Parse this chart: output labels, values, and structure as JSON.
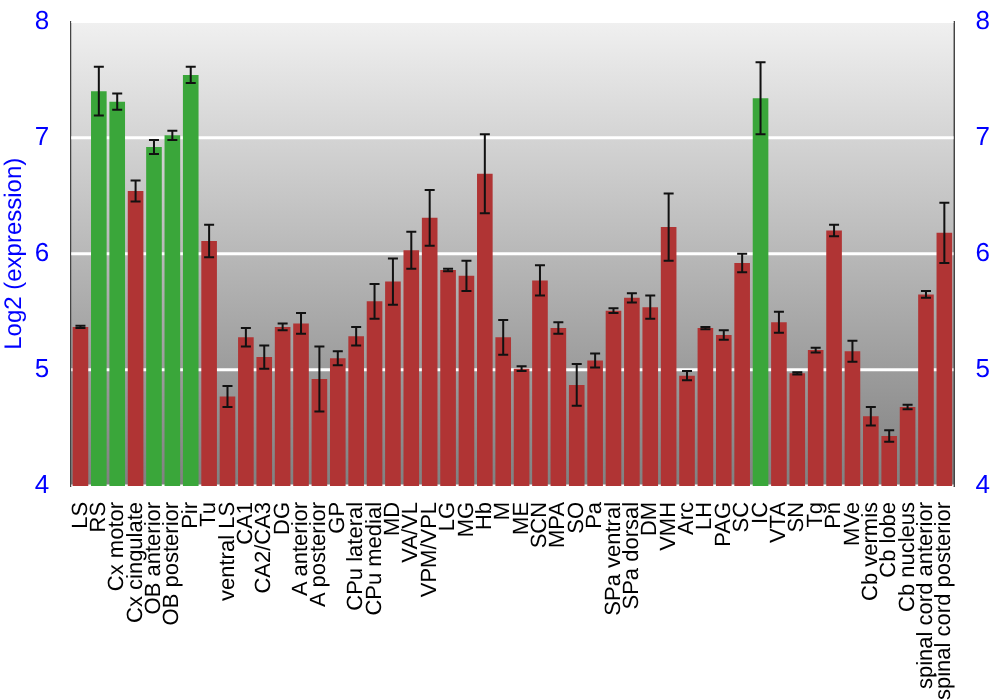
{
  "chart_data": {
    "type": "bar",
    "ylabel": "Log2 (expression)",
    "categories": [
      "LS",
      "RS",
      "Cx motor",
      "Cx cingulate",
      "OB anterior",
      "OB posterior",
      "Pir",
      "Tu",
      "ventral LS",
      "CA1",
      "CA2/CA3",
      "DG",
      "A anterior",
      "A posterior",
      "GP",
      "CPu lateral",
      "CPu medial",
      "MD",
      "VA/VL",
      "VPM/VPL",
      "LG",
      "MG",
      "Hb",
      "M",
      "ME",
      "SCN",
      "MPA",
      "SO",
      "Pa",
      "SPa ventral",
      "SPa dorsal",
      "DM",
      "VMH",
      "Arc",
      "LH",
      "PAG",
      "SC",
      "IC",
      "VTA",
      "SN",
      "Tg",
      "Pn",
      "MVe",
      "Cb vermis",
      "Cb lobe",
      "Cb nucleus",
      "spinal cord anterior",
      "spinal cord posterior"
    ],
    "values": [
      5.37,
      7.4,
      7.31,
      6.54,
      6.92,
      7.02,
      7.54,
      6.11,
      4.77,
      5.28,
      5.11,
      5.37,
      5.4,
      4.92,
      5.1,
      5.29,
      5.59,
      5.76,
      6.03,
      6.31,
      5.86,
      5.81,
      6.69,
      5.28,
      5.01,
      5.77,
      5.36,
      4.87,
      5.08,
      5.51,
      5.62,
      5.54,
      6.23,
      4.95,
      5.36,
      5.3,
      5.92,
      7.34,
      5.41,
      4.97,
      5.17,
      6.2,
      5.16,
      4.6,
      4.43,
      4.68,
      5.65,
      6.18
    ],
    "errors": [
      0.01,
      0.21,
      0.07,
      0.09,
      0.06,
      0.04,
      0.07,
      0.14,
      0.09,
      0.08,
      0.1,
      0.03,
      0.09,
      0.28,
      0.06,
      0.08,
      0.15,
      0.2,
      0.16,
      0.24,
      0.01,
      0.13,
      0.34,
      0.15,
      0.02,
      0.13,
      0.05,
      0.18,
      0.06,
      0.02,
      0.04,
      0.1,
      0.29,
      0.04,
      0.01,
      0.04,
      0.08,
      0.31,
      0.09,
      0.01,
      0.02,
      0.05,
      0.09,
      0.08,
      0.05,
      0.02,
      0.03,
      0.26
    ],
    "colors": [
      "#b03434",
      "#3aa63a",
      "#3aa63a",
      "#b03434",
      "#3aa63a",
      "#3aa63a",
      "#3aa63a",
      "#b03434",
      "#b03434",
      "#b03434",
      "#b03434",
      "#b03434",
      "#b03434",
      "#b03434",
      "#b03434",
      "#b03434",
      "#b03434",
      "#b03434",
      "#b03434",
      "#b03434",
      "#b03434",
      "#b03434",
      "#b03434",
      "#b03434",
      "#b03434",
      "#b03434",
      "#b03434",
      "#b03434",
      "#b03434",
      "#b03434",
      "#b03434",
      "#b03434",
      "#b03434",
      "#b03434",
      "#b03434",
      "#b03434",
      "#b03434",
      "#3aa63a",
      "#b03434",
      "#b03434",
      "#b03434",
      "#b03434",
      "#b03434",
      "#b03434",
      "#b03434",
      "#b03434",
      "#b03434",
      "#b03434"
    ],
    "ylim": [
      4,
      8
    ],
    "yticks": [
      4,
      5,
      6,
      7,
      8
    ],
    "y2lim": [
      4,
      8
    ],
    "y2ticks": [
      4,
      5,
      6,
      7,
      8
    ],
    "grid": "y",
    "legend": false
  }
}
